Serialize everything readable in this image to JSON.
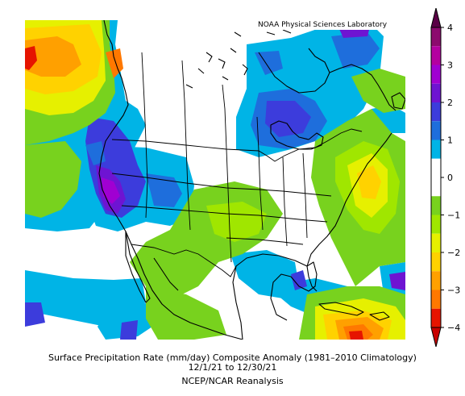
{
  "map": {
    "credit": "NOAA Physical Sciences Laboratory",
    "caption": {
      "line1": "Surface Precipitation Rate (mm/day) Composite Anomaly (1981–2010 Climatology)",
      "line2": "12/1/21  to 12/30/21",
      "source": "NCEP/NCAR Reanalysis"
    },
    "region": "North America",
    "variable": "Surface Precipitation Rate anomaly",
    "units": "mm/day"
  },
  "legend": {
    "ticks": [
      "4",
      "3",
      "2",
      "1",
      "0",
      "−1",
      "−2",
      "−3",
      "−4"
    ],
    "ends": "triangular arrows (extend both)",
    "bands": [
      {
        "from": 3.5,
        "to": 4.0,
        "color": "#8c0a6e"
      },
      {
        "from": 3.0,
        "to": 3.5,
        "color": "#b400a0"
      },
      {
        "from": 2.5,
        "to": 3.0,
        "color": "#a000d2"
      },
      {
        "from": 2.0,
        "to": 2.5,
        "color": "#6e14d2"
      },
      {
        "from": 1.5,
        "to": 2.0,
        "color": "#3c3cdc"
      },
      {
        "from": 1.0,
        "to": 1.5,
        "color": "#1e6edc"
      },
      {
        "from": 0.5,
        "to": 1.0,
        "color": "#00b4e6"
      },
      {
        "from": -0.5,
        "to": 0.5,
        "color": "#ffffff"
      },
      {
        "from": -1.0,
        "to": -0.5,
        "color": "#78d21e"
      },
      {
        "from": -1.5,
        "to": -1.0,
        "color": "#a0e600"
      },
      {
        "from": -2.0,
        "to": -1.5,
        "color": "#e6f000"
      },
      {
        "from": -2.5,
        "to": -2.0,
        "color": "#ffd200"
      },
      {
        "from": -3.0,
        "to": -2.5,
        "color": "#ffa000"
      },
      {
        "from": -3.5,
        "to": -3.0,
        "color": "#ff7800"
      },
      {
        "from": -4.0,
        "to": -3.5,
        "color": "#e61400"
      }
    ],
    "top_arrow_color": "#5a0046",
    "bottom_arrow_color": "#c80000"
  }
}
